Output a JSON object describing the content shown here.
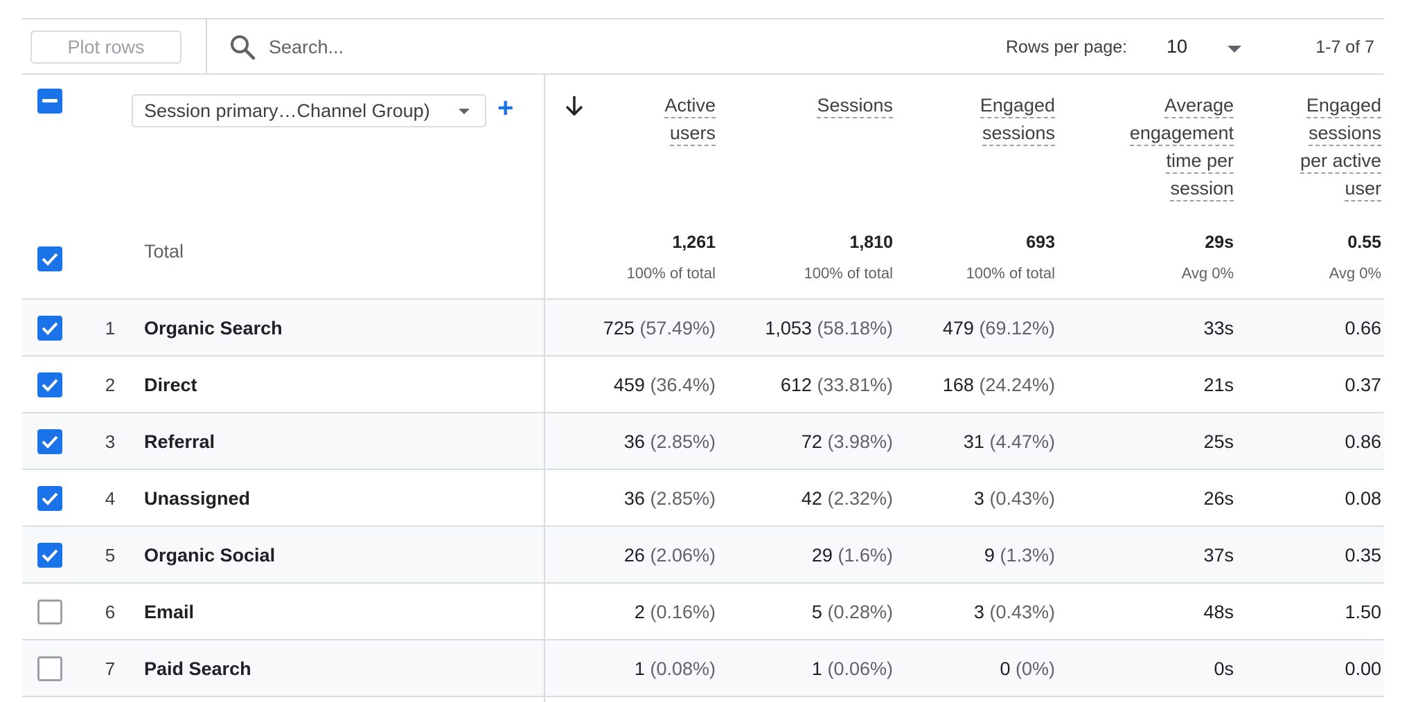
{
  "toolbar": {
    "plot_rows_label": "Plot rows",
    "search_placeholder": "Search...",
    "rows_per_page_label": "Rows per page:",
    "rows_per_page_value": "10",
    "pager_count": "1-7 of 7"
  },
  "header": {
    "dimension_label": "Session primary…Channel Group)",
    "add_dimension": "+",
    "columns": [
      {
        "lines": [
          "Active",
          "users"
        ]
      },
      {
        "lines": [
          "Sessions"
        ]
      },
      {
        "lines": [
          "Engaged",
          "sessions"
        ]
      },
      {
        "lines": [
          "Average",
          "engagement",
          "time per",
          "session"
        ]
      },
      {
        "lines": [
          "Engaged",
          "sessions",
          "per active",
          "user"
        ]
      }
    ]
  },
  "total": {
    "label": "Total",
    "values": [
      "1,261",
      "1,810",
      "693",
      "29s",
      "0.55"
    ],
    "subs": [
      "100% of total",
      "100% of total",
      "100% of total",
      "Avg 0%",
      "Avg 0%"
    ]
  },
  "rows": [
    {
      "num": "1",
      "name": "Organic Search",
      "checked": true,
      "active_users": "725",
      "active_users_pct": "(57.49%)",
      "sessions": "1,053",
      "sessions_pct": "(58.18%)",
      "engaged": "479",
      "engaged_pct": "(69.12%)",
      "avg_time": "33s",
      "per_user": "0.66"
    },
    {
      "num": "2",
      "name": "Direct",
      "checked": true,
      "active_users": "459",
      "active_users_pct": "(36.4%)",
      "sessions": "612",
      "sessions_pct": "(33.81%)",
      "engaged": "168",
      "engaged_pct": "(24.24%)",
      "avg_time": "21s",
      "per_user": "0.37"
    },
    {
      "num": "3",
      "name": "Referral",
      "checked": true,
      "active_users": "36",
      "active_users_pct": "(2.85%)",
      "sessions": "72",
      "sessions_pct": "(3.98%)",
      "engaged": "31",
      "engaged_pct": "(4.47%)",
      "avg_time": "25s",
      "per_user": "0.86"
    },
    {
      "num": "4",
      "name": "Unassigned",
      "checked": true,
      "active_users": "36",
      "active_users_pct": "(2.85%)",
      "sessions": "42",
      "sessions_pct": "(2.32%)",
      "engaged": "3",
      "engaged_pct": "(0.43%)",
      "avg_time": "26s",
      "per_user": "0.08"
    },
    {
      "num": "5",
      "name": "Organic Social",
      "checked": true,
      "active_users": "26",
      "active_users_pct": "(2.06%)",
      "sessions": "29",
      "sessions_pct": "(1.6%)",
      "engaged": "9",
      "engaged_pct": "(1.3%)",
      "avg_time": "37s",
      "per_user": "0.35"
    },
    {
      "num": "6",
      "name": "Email",
      "checked": false,
      "active_users": "2",
      "active_users_pct": "(0.16%)",
      "sessions": "5",
      "sessions_pct": "(0.28%)",
      "engaged": "3",
      "engaged_pct": "(0.43%)",
      "avg_time": "48s",
      "per_user": "1.50"
    },
    {
      "num": "7",
      "name": "Paid Search",
      "checked": false,
      "active_users": "1",
      "active_users_pct": "(0.08%)",
      "sessions": "1",
      "sessions_pct": "(0.06%)",
      "engaged": "0",
      "engaged_pct": "(0%)",
      "avg_time": "0s",
      "per_user": "0.00"
    }
  ],
  "colors": {
    "accent": "#1a73e8",
    "border": "#dadce0",
    "row_shade": "#f8f9fa"
  },
  "icons": {
    "search": "search-icon",
    "sort": "arrow-down-icon",
    "dropdown": "chevron-down-icon",
    "add": "plus-icon"
  }
}
